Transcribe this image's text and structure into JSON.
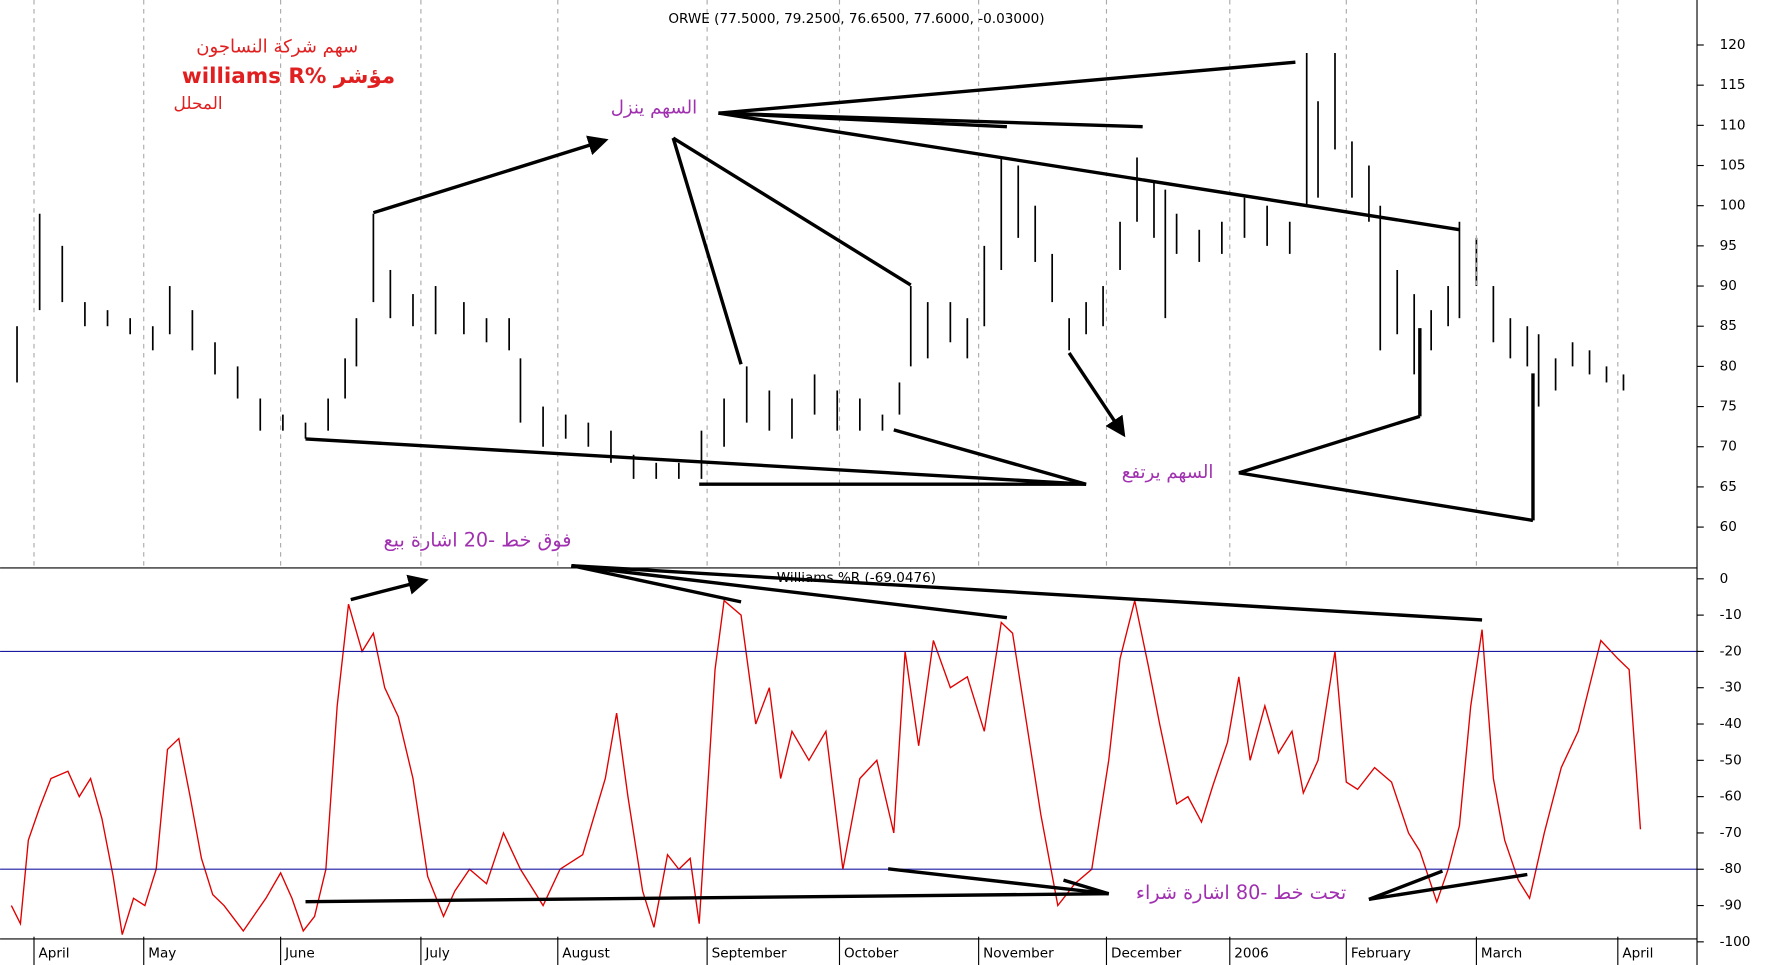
{
  "chart_data": [
    {
      "type": "ohlc",
      "title": "ORWE (77.5000, 79.2500, 76.6500, 77.6000, -0.03000)",
      "color": "#000000",
      "grid": "x",
      "xlim": [
        0,
        1500
      ],
      "ylim": [
        55.2,
        125.6
      ],
      "yticks": [
        60,
        65,
        70,
        75,
        80,
        85,
        90,
        95,
        100,
        105,
        110,
        115,
        120
      ],
      "x": [
        15,
        35,
        55,
        75,
        95,
        115,
        135,
        150,
        170,
        190,
        210,
        230,
        250,
        270,
        290,
        305,
        315,
        330,
        345,
        365,
        385,
        410,
        430,
        450,
        460,
        480,
        500,
        520,
        540,
        560,
        580,
        600,
        620,
        640,
        660,
        680,
        700,
        720,
        740,
        760,
        780,
        795,
        805,
        820,
        840,
        855,
        870,
        885,
        900,
        915,
        930,
        945,
        960,
        975,
        990,
        1005,
        1020,
        1030,
        1040,
        1060,
        1080,
        1100,
        1120,
        1140,
        1155,
        1165,
        1180,
        1195,
        1210,
        1220,
        1235,
        1250,
        1265,
        1280,
        1290,
        1305,
        1320,
        1335,
        1350,
        1360,
        1375,
        1390,
        1405,
        1420,
        1435
      ],
      "high": [
        85,
        99,
        95,
        88,
        87,
        86,
        85,
        90,
        87,
        83,
        80,
        76,
        74,
        73,
        76,
        81,
        86,
        99,
        92,
        89,
        90,
        88,
        86,
        86,
        81,
        75,
        74,
        73,
        72,
        69,
        68,
        68,
        72,
        76,
        80,
        77,
        76,
        79,
        77,
        76,
        74,
        78,
        90,
        88,
        88,
        86,
        95,
        106,
        105,
        100,
        94,
        86,
        88,
        90,
        98,
        106,
        103,
        102,
        99,
        97,
        98,
        101,
        100,
        98,
        119,
        113,
        119,
        108,
        105,
        100,
        92,
        89,
        87,
        90,
        98,
        96,
        90,
        86,
        85,
        84,
        81,
        83,
        82,
        80,
        79
      ],
      "low": [
        78,
        87,
        88,
        85,
        85,
        84,
        82,
        84,
        82,
        79,
        76,
        72,
        72,
        71,
        72,
        76,
        80,
        88,
        86,
        85,
        84,
        84,
        83,
        82,
        73,
        70,
        71,
        70,
        68,
        66,
        66,
        66,
        66,
        70,
        73,
        72,
        71,
        74,
        72,
        72,
        72,
        74,
        80,
        81,
        83,
        81,
        85,
        92,
        96,
        93,
        88,
        82,
        84,
        85,
        92,
        98,
        96,
        86,
        94,
        93,
        94,
        96,
        95,
        94,
        100,
        101,
        107,
        101,
        98,
        82,
        84,
        79,
        82,
        85,
        86,
        90,
        83,
        81,
        80,
        75,
        77,
        80,
        79,
        78,
        77
      ]
    },
    {
      "type": "line",
      "title": "Williams %R (-69.0476)",
      "color": "#e00000",
      "hlines": [
        -20,
        -80
      ],
      "hline_color": "#1a1aa0",
      "xlim": [
        0,
        1500
      ],
      "ylim": [
        -107,
        3
      ],
      "yticks": [
        0,
        -10,
        -20,
        -30,
        -40,
        -50,
        -60,
        -70,
        -80,
        -90,
        -100
      ],
      "xticks": [
        {
          "value": 30,
          "label": "April"
        },
        {
          "value": 127,
          "label": "May"
        },
        {
          "value": 248,
          "label": "June"
        },
        {
          "value": 372,
          "label": "July"
        },
        {
          "value": 493,
          "label": "August"
        },
        {
          "value": 625,
          "label": "September"
        },
        {
          "value": 742,
          "label": "October"
        },
        {
          "value": 865,
          "label": "November"
        },
        {
          "value": 978,
          "label": "December"
        },
        {
          "value": 1087,
          "label": "2006"
        },
        {
          "value": 1190,
          "label": "February"
        },
        {
          "value": 1305,
          "label": "March"
        },
        {
          "value": 1430,
          "label": "April"
        }
      ],
      "x": [
        10,
        18,
        25,
        35,
        45,
        60,
        70,
        80,
        90,
        100,
        108,
        118,
        128,
        138,
        148,
        158,
        168,
        178,
        188,
        198,
        215,
        235,
        248,
        258,
        268,
        278,
        288,
        298,
        308,
        320,
        330,
        340,
        352,
        365,
        378,
        392,
        402,
        415,
        430,
        445,
        460,
        480,
        495,
        515,
        535,
        545,
        555,
        568,
        578,
        590,
        600,
        610,
        618,
        632,
        640,
        655,
        668,
        680,
        690,
        700,
        715,
        730,
        745,
        760,
        775,
        790,
        800,
        812,
        825,
        840,
        855,
        870,
        885,
        895,
        910,
        920,
        935,
        950,
        965,
        980,
        990,
        1003,
        1015,
        1025,
        1040,
        1050,
        1062,
        1072,
        1085,
        1095,
        1105,
        1118,
        1130,
        1142,
        1152,
        1165,
        1180,
        1190,
        1200,
        1215,
        1230,
        1245,
        1255,
        1270,
        1280,
        1290,
        1300,
        1310,
        1320,
        1330,
        1342,
        1352,
        1365,
        1380,
        1395,
        1415,
        1430,
        1440,
        1450
      ],
      "values": [
        -90,
        -95,
        -72,
        -63,
        -55,
        -53,
        -60,
        -55,
        -66,
        -82,
        -98,
        -88,
        -90,
        -80,
        -47,
        -44,
        -60,
        -77,
        -87,
        -90,
        -97,
        -88,
        -81,
        -88,
        -97,
        -93,
        -80,
        -35,
        -7,
        -20,
        -15,
        -30,
        -38,
        -55,
        -82,
        -93,
        -86,
        -80,
        -84,
        -70,
        -80,
        -90,
        -80,
        -76,
        -55,
        -37,
        -60,
        -86,
        -96,
        -76,
        -80,
        -77,
        -95,
        -25,
        -6,
        -10,
        -40,
        -30,
        -55,
        -42,
        -50,
        -42,
        -80,
        -55,
        -50,
        -70,
        -20,
        -46,
        -17,
        -30,
        -27,
        -42,
        -12,
        -15,
        -45,
        -65,
        -90,
        -84,
        -80,
        -50,
        -22,
        -6,
        -24,
        -40,
        -62,
        -60,
        -67,
        -57,
        -45,
        -27,
        -50,
        -35,
        -48,
        -42,
        -59,
        -50,
        -20,
        -56,
        -58,
        -52,
        -56,
        -70,
        -75,
        -89,
        -80,
        -68,
        -35,
        -14,
        -55,
        -72,
        -83,
        -88,
        -70,
        -52,
        -42,
        -17,
        -22,
        -25,
        -69
      ]
    }
  ],
  "annotations": [
    "سهم شركة النساجون",
    "williams R% مؤشر",
    "المحلل",
    "السهم ينزل",
    "السهم يرتفع",
    "فوق خط -20 اشارة بيع",
    "تحت خط -80 اشارة شراء"
  ]
}
